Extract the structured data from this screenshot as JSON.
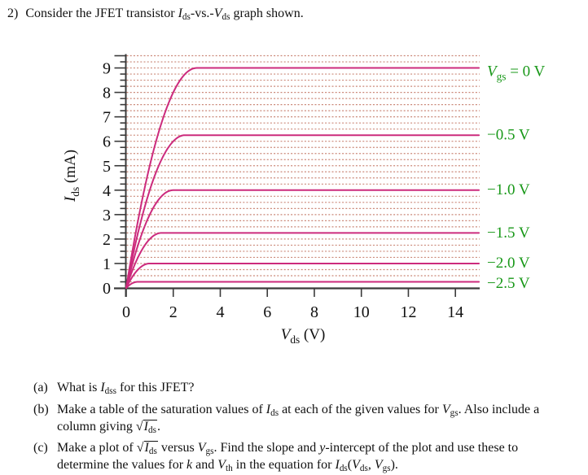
{
  "title": {
    "number": "2)",
    "segments": [
      {
        "t": "Consider the JFET transistor "
      },
      {
        "t": "I",
        "s": "i"
      },
      {
        "t": "ds",
        "s": "sub"
      },
      {
        "t": "-vs.-"
      },
      {
        "t": "V",
        "s": "i"
      },
      {
        "t": "ds",
        "s": "sub"
      },
      {
        "t": " graph shown."
      }
    ]
  },
  "chart_data": {
    "type": "line",
    "description": "JFET output characteristics: drain current Ids versus drain-source voltage Vds for six gate-source voltages",
    "x_axis": {
      "label_segments": [
        {
          "t": "V",
          "s": "i"
        },
        {
          "t": "ds",
          "s": "sub"
        },
        {
          "t": " (V)"
        }
      ],
      "ticks": [
        0,
        2,
        4,
        6,
        8,
        10,
        12,
        14
      ],
      "min": 0,
      "max": 15
    },
    "y_axis": {
      "label_segments": [
        {
          "t": "I",
          "s": "i"
        },
        {
          "t": "ds",
          "s": "sub"
        },
        {
          "t": " (mA)"
        }
      ],
      "ticks": [
        0,
        1,
        2,
        3,
        4,
        5,
        6,
        7,
        8,
        9
      ],
      "min": 0,
      "max": 9.5,
      "minor_tick_step": 0.25
    },
    "grid": {
      "horizontal_step": 0.25,
      "style": "dotted",
      "vertical": false
    },
    "model": "ids(v) = i_sat*(2*t - t*t) with t = min(v / v_knee, 1); saturation for v > v_knee",
    "series": [
      {
        "v_gs_V": 0,
        "i_sat_mA": 9,
        "v_knee_V": 3,
        "label_segments": [
          {
            "t": "V",
            "s": "i"
          },
          {
            "t": "gs",
            "s": "sub"
          },
          {
            "t": " = 0 V"
          }
        ]
      },
      {
        "v_gs_V": -0.5,
        "i_sat_mA": 6.25,
        "v_knee_V": 2.5,
        "label_segments": [
          {
            "t": "−0.5 V"
          }
        ]
      },
      {
        "v_gs_V": -1.0,
        "i_sat_mA": 4,
        "v_knee_V": 2,
        "label_segments": [
          {
            "t": "−1.0 V"
          }
        ]
      },
      {
        "v_gs_V": -1.5,
        "i_sat_mA": 2.25,
        "v_knee_V": 1.5,
        "label_segments": [
          {
            "t": "−1.5 V"
          }
        ]
      },
      {
        "v_gs_V": -2.0,
        "i_sat_mA": 1,
        "v_knee_V": 1,
        "label_segments": [
          {
            "t": "−2.0 V"
          }
        ]
      },
      {
        "v_gs_V": -2.5,
        "i_sat_mA": 0.25,
        "v_knee_V": 0.5,
        "label_segments": [
          {
            "t": "−2.5 V"
          }
        ]
      }
    ],
    "colors": {
      "curve": "#cc2b7d",
      "grid": "#c57b69",
      "axis": "#3a3a3a",
      "curve_label": "#189818",
      "tick_label": "#111111"
    }
  },
  "questions": {
    "a": {
      "label": "(a)",
      "lines": [
        [
          {
            "t": "What is "
          },
          {
            "t": "I",
            "s": "i"
          },
          {
            "t": "dss",
            "s": "sub"
          },
          {
            "t": " for this JFET?"
          }
        ]
      ]
    },
    "b": {
      "label": "(b)",
      "lines": [
        [
          {
            "t": "Make a table of the saturation values of "
          },
          {
            "t": "I",
            "s": "i"
          },
          {
            "t": "ds",
            "s": "sub"
          },
          {
            "t": " at each of the given values for "
          },
          {
            "t": "V",
            "s": "i"
          },
          {
            "t": "gs",
            "s": "sub"
          },
          {
            "t": ".  Also include a"
          }
        ],
        [
          {
            "t": "column giving "
          },
          {
            "sqrt": [
              {
                "t": "I",
                "s": "i"
              },
              {
                "t": "ds",
                "s": "sub"
              }
            ]
          },
          {
            "t": "."
          }
        ]
      ]
    },
    "c": {
      "label": "(c)",
      "lines": [
        [
          {
            "t": "Make a plot of "
          },
          {
            "sqrt": [
              {
                "t": "I",
                "s": "i"
              },
              {
                "t": "ds",
                "s": "sub"
              }
            ]
          },
          {
            "t": " versus "
          },
          {
            "t": "V",
            "s": "i"
          },
          {
            "t": "gs",
            "s": "sub"
          },
          {
            "t": ".  Find the slope and "
          },
          {
            "t": "y",
            "s": "i"
          },
          {
            "t": "-intercept of the plot and use these to"
          }
        ],
        [
          {
            "t": "determine the values for "
          },
          {
            "t": "k",
            "s": "i"
          },
          {
            "t": " and "
          },
          {
            "t": "V",
            "s": "i"
          },
          {
            "t": "th",
            "s": "sub"
          },
          {
            "t": " in the equation for "
          },
          {
            "t": "I",
            "s": "i"
          },
          {
            "t": "ds",
            "s": "sub"
          },
          {
            "t": "("
          },
          {
            "t": "V",
            "s": "i"
          },
          {
            "t": "ds",
            "s": "sub"
          },
          {
            "t": ", "
          },
          {
            "t": "V",
            "s": "i"
          },
          {
            "t": "gs",
            "s": "sub"
          },
          {
            "t": ")."
          }
        ]
      ]
    }
  }
}
